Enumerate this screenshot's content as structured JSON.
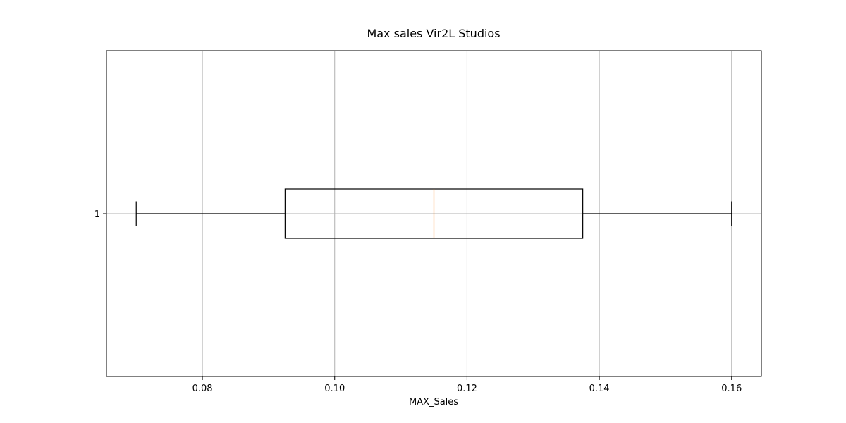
{
  "chart_data": {
    "type": "boxplot",
    "orientation": "horizontal",
    "title": "Max sales Vir2L Studios",
    "xlabel": "MAX_Sales",
    "ylabel": "",
    "categories": [
      "1"
    ],
    "boxes": [
      {
        "label": "1",
        "whisker_low": 0.07,
        "q1": 0.0925,
        "median": 0.115,
        "q3": 0.1375,
        "whisker_high": 0.16
      }
    ],
    "xlim": [
      0.0655,
      0.1645
    ],
    "xticks": [
      0.08,
      0.1,
      0.12,
      0.14,
      0.16
    ],
    "xtick_labels": [
      "0.08",
      "0.10",
      "0.12",
      "0.14",
      "0.16"
    ],
    "grid": true,
    "colors": {
      "box": "#000000",
      "median": "#ff7f0e",
      "grid": "#b0b0b0"
    }
  }
}
